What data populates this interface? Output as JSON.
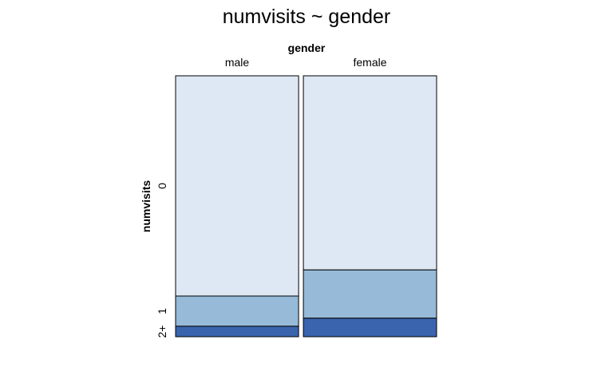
{
  "chart_data": {
    "type": "mosaic",
    "title": "numvisits ~ gender",
    "x_variable": "gender",
    "y_variable": "numvisits",
    "categories": [
      "male",
      "female"
    ],
    "column_widths": [
      0.48,
      0.52
    ],
    "levels": [
      "0",
      "1",
      "2+"
    ],
    "series": [
      {
        "name": "0",
        "values": [
          0.844,
          0.744
        ]
      },
      {
        "name": "1",
        "values": [
          0.116,
          0.185
        ]
      },
      {
        "name": "2+",
        "values": [
          0.04,
          0.071
        ]
      }
    ],
    "colors": [
      "#dee8f5",
      "#96bad8",
      "#3b64ae"
    ],
    "grid": false,
    "legend": "none"
  }
}
